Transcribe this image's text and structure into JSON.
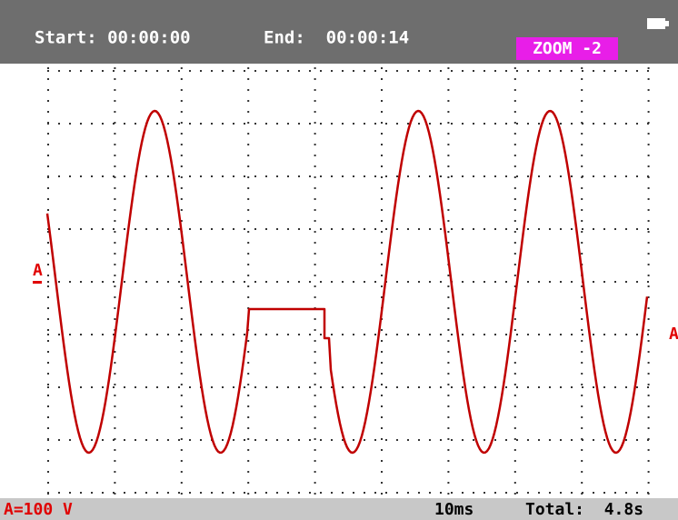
{
  "header": {
    "start": "Start: 00:00:00",
    "end": "End:  00:00:14",
    "zoom": "ZOOM -2"
  },
  "trace": {
    "left_marker": "A",
    "right_marker": "A"
  },
  "footer": {
    "range": "A=100 V",
    "timebase": "10ms",
    "total": "Total:  4.8s"
  }
}
